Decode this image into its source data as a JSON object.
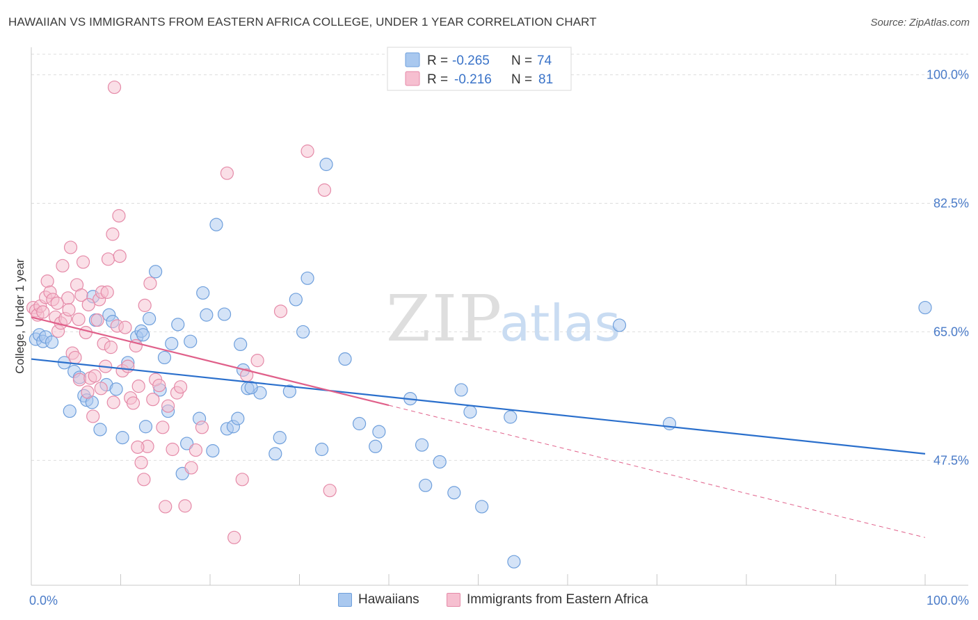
{
  "title": "HAWAIIAN VS IMMIGRANTS FROM EASTERN AFRICA COLLEGE, UNDER 1 YEAR CORRELATION CHART",
  "source": "Source: ZipAtlas.com",
  "watermark": {
    "zip": "ZIP",
    "atlas": "atlas"
  },
  "legend_top": [
    {
      "r_label": "R =",
      "r_value": "-0.265",
      "n_label": "N =",
      "n_value": "74"
    },
    {
      "r_label": "R =",
      "r_value": "-0.216",
      "n_label": "N =",
      "n_value": "81"
    }
  ],
  "legend_bottom": [
    {
      "label": "Hawaiians"
    },
    {
      "label": "Immigrants from Eastern Africa"
    }
  ],
  "colors": {
    "blue_fill": "#a9c8ef",
    "blue_stroke": "#6e9fdc",
    "blue_line": "#2a6fcc",
    "pink_fill": "#f6bfd0",
    "pink_stroke": "#e58aa8",
    "pink_line": "#e0608a",
    "tick_label": "#4a7bc8",
    "grid": "#dddddd"
  },
  "chart_data": {
    "type": "scatter",
    "ylabel": "College, Under 1 year",
    "x_tick_labels": [
      "0.0%",
      "100.0%"
    ],
    "y_tick_labels": [
      "100.0%",
      "82.5%",
      "65.0%",
      "47.5%"
    ],
    "y_ticks": [
      100.0,
      82.5,
      65.0,
      47.5
    ],
    "xlim": [
      0,
      100
    ],
    "ylim": [
      30.5,
      102.8
    ],
    "grid": true,
    "legend_placement": "top-center",
    "series": [
      {
        "name": "Hawaiians",
        "r": -0.265,
        "n": 74,
        "trend": {
          "x0": 0,
          "y0": 61.3,
          "x1": 100,
          "y1": 48.4
        },
        "points": [
          [
            0.5,
            64.0
          ],
          [
            0.9,
            64.6
          ],
          [
            1.3,
            63.7
          ],
          [
            1.6,
            64.3
          ],
          [
            2.3,
            63.6
          ],
          [
            3.7,
            60.8
          ],
          [
            4.3,
            54.2
          ],
          [
            4.8,
            59.6
          ],
          [
            5.4,
            58.8
          ],
          [
            5.9,
            56.3
          ],
          [
            6.2,
            55.7
          ],
          [
            6.9,
            69.8
          ],
          [
            7.2,
            66.6
          ],
          [
            7.7,
            51.7
          ],
          [
            8.4,
            57.8
          ],
          [
            8.7,
            67.3
          ],
          [
            9.1,
            66.4
          ],
          [
            9.5,
            57.2
          ],
          [
            10.2,
            50.6
          ],
          [
            10.8,
            60.8
          ],
          [
            11.8,
            64.3
          ],
          [
            12.3,
            65.1
          ],
          [
            12.8,
            52.1
          ],
          [
            13.2,
            66.8
          ],
          [
            13.9,
            73.2
          ],
          [
            14.4,
            57.1
          ],
          [
            14.9,
            61.5
          ],
          [
            15.3,
            54.2
          ],
          [
            15.7,
            63.4
          ],
          [
            16.4,
            66.0
          ],
          [
            16.9,
            45.7
          ],
          [
            17.4,
            49.8
          ],
          [
            17.8,
            63.7
          ],
          [
            18.8,
            53.2
          ],
          [
            19.2,
            70.3
          ],
          [
            19.6,
            67.3
          ],
          [
            20.3,
            48.8
          ],
          [
            20.7,
            79.6
          ],
          [
            21.6,
            67.4
          ],
          [
            21.9,
            51.8
          ],
          [
            22.6,
            52.1
          ],
          [
            23.1,
            53.2
          ],
          [
            23.4,
            63.3
          ],
          [
            23.7,
            59.8
          ],
          [
            24.2,
            57.3
          ],
          [
            25.6,
            56.7
          ],
          [
            27.3,
            48.4
          ],
          [
            27.8,
            50.6
          ],
          [
            28.9,
            56.9
          ],
          [
            29.6,
            69.4
          ],
          [
            30.4,
            65.0
          ],
          [
            30.9,
            72.3
          ],
          [
            32.5,
            49.0
          ],
          [
            33.0,
            87.8
          ],
          [
            35.1,
            61.3
          ],
          [
            36.7,
            52.5
          ],
          [
            38.5,
            49.4
          ],
          [
            38.9,
            51.4
          ],
          [
            42.4,
            55.9
          ],
          [
            43.7,
            49.6
          ],
          [
            44.1,
            44.1
          ],
          [
            45.7,
            47.3
          ],
          [
            47.3,
            43.1
          ],
          [
            48.1,
            57.1
          ],
          [
            49.1,
            54.1
          ],
          [
            50.4,
            41.2
          ],
          [
            53.6,
            53.4
          ],
          [
            54.0,
            33.7
          ],
          [
            65.8,
            65.9
          ],
          [
            71.4,
            52.5
          ],
          [
            100.0,
            68.3
          ],
          [
            6.8,
            55.4
          ],
          [
            12.5,
            64.6
          ],
          [
            24.6,
            57.4
          ]
        ]
      },
      {
        "name": "Immigrants from Eastern Africa",
        "r": -0.216,
        "n": 81,
        "trend": {
          "x0": 0,
          "y0": 67.0,
          "x1": 40.0,
          "y1": 55.0
        },
        "trend_dashed": {
          "x0": 40.0,
          "y0": 55.0,
          "x1": 100,
          "y1": 37.0
        },
        "points": [
          [
            0.2,
            68.3
          ],
          [
            0.5,
            67.9
          ],
          [
            0.7,
            67.3
          ],
          [
            1.0,
            68.5
          ],
          [
            1.3,
            67.7
          ],
          [
            1.6,
            69.7
          ],
          [
            1.8,
            71.9
          ],
          [
            2.1,
            70.4
          ],
          [
            2.4,
            69.4
          ],
          [
            2.7,
            67.0
          ],
          [
            3.0,
            65.1
          ],
          [
            3.3,
            66.2
          ],
          [
            3.5,
            74.0
          ],
          [
            3.8,
            66.8
          ],
          [
            4.1,
            69.6
          ],
          [
            4.4,
            76.5
          ],
          [
            4.6,
            62.1
          ],
          [
            4.9,
            61.5
          ],
          [
            5.1,
            71.4
          ],
          [
            5.4,
            58.5
          ],
          [
            5.6,
            70.0
          ],
          [
            5.8,
            74.5
          ],
          [
            6.1,
            64.9
          ],
          [
            6.3,
            56.8
          ],
          [
            6.6,
            58.7
          ],
          [
            6.9,
            53.5
          ],
          [
            7.1,
            59.0
          ],
          [
            7.4,
            66.6
          ],
          [
            7.6,
            69.4
          ],
          [
            7.9,
            70.4
          ],
          [
            8.1,
            63.4
          ],
          [
            8.3,
            60.3
          ],
          [
            8.6,
            74.9
          ],
          [
            8.9,
            62.9
          ],
          [
            9.1,
            78.3
          ],
          [
            9.3,
            98.3
          ],
          [
            9.6,
            65.8
          ],
          [
            9.9,
            75.3
          ],
          [
            10.2,
            59.7
          ],
          [
            10.5,
            65.6
          ],
          [
            10.8,
            60.3
          ],
          [
            11.1,
            56.0
          ],
          [
            11.4,
            55.3
          ],
          [
            11.7,
            63.1
          ],
          [
            12.0,
            57.6
          ],
          [
            12.3,
            47.2
          ],
          [
            12.6,
            44.9
          ],
          [
            13.0,
            49.4
          ],
          [
            13.3,
            71.6
          ],
          [
            13.6,
            55.8
          ],
          [
            13.9,
            58.5
          ],
          [
            14.3,
            57.7
          ],
          [
            14.7,
            52.0
          ],
          [
            15.0,
            41.2
          ],
          [
            15.3,
            54.9
          ],
          [
            15.8,
            49.0
          ],
          [
            16.3,
            56.7
          ],
          [
            16.7,
            57.5
          ],
          [
            17.2,
            41.3
          ],
          [
            17.9,
            46.5
          ],
          [
            18.4,
            48.9
          ],
          [
            19.1,
            52.0
          ],
          [
            21.9,
            86.6
          ],
          [
            22.7,
            37.0
          ],
          [
            23.6,
            44.9
          ],
          [
            24.1,
            59.1
          ],
          [
            25.3,
            61.1
          ],
          [
            27.9,
            67.8
          ],
          [
            30.9,
            89.6
          ],
          [
            32.8,
            84.3
          ],
          [
            33.4,
            43.4
          ],
          [
            8.5,
            70.4
          ],
          [
            9.8,
            80.8
          ],
          [
            6.4,
            68.7
          ],
          [
            4.2,
            68.0
          ],
          [
            2.9,
            68.9
          ],
          [
            5.3,
            66.7
          ],
          [
            7.8,
            57.3
          ],
          [
            11.9,
            49.3
          ],
          [
            9.2,
            55.4
          ],
          [
            12.7,
            68.6
          ]
        ]
      }
    ]
  }
}
